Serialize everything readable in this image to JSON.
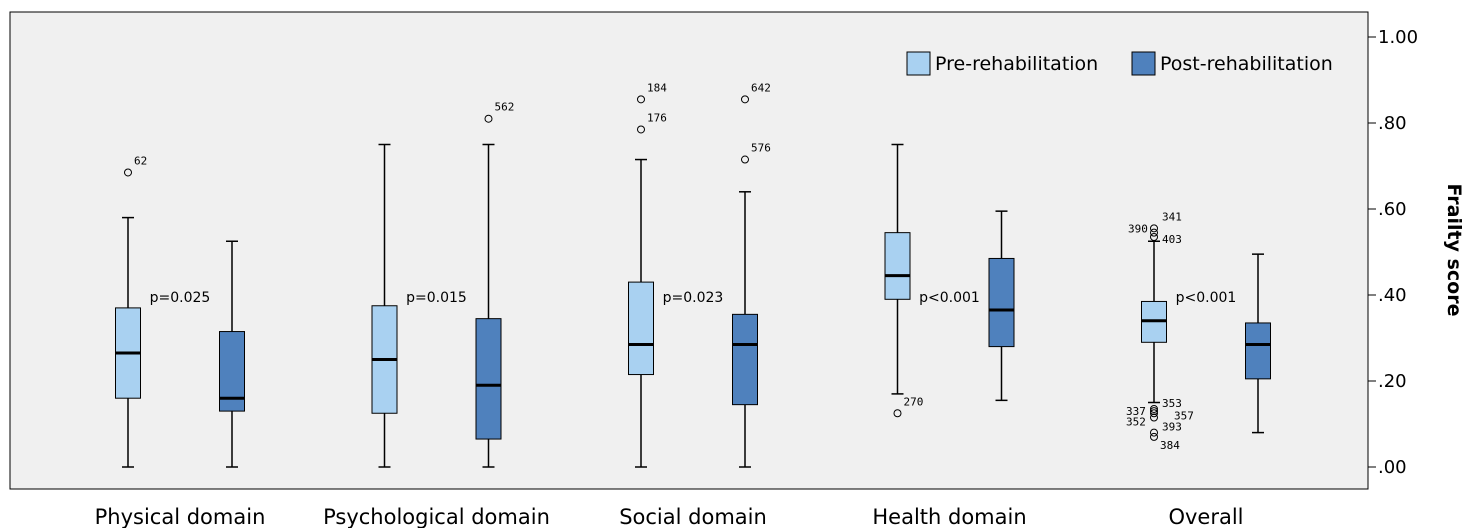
{
  "chart_data": {
    "type": "boxplot",
    "ylabel": "Frailty score",
    "ylim": [
      0,
      1.05
    ],
    "yticks": [
      {
        "value": 0.0,
        "label": ".00"
      },
      {
        "value": 0.2,
        "label": ".20"
      },
      {
        "value": 0.4,
        "label": ".40"
      },
      {
        "value": 0.6,
        "label": ".60"
      },
      {
        "value": 0.8,
        "label": ".80"
      },
      {
        "value": 1.0,
        "label": "1.00"
      }
    ],
    "y_axis_side": "right",
    "grid": false,
    "legend_position": "top-right",
    "categories": [
      "Physical domain",
      "Psychological domain",
      "Social domain",
      "Health domain",
      "Overall"
    ],
    "series": [
      {
        "name": "Pre-rehabilitation",
        "color": "#a9d1f1",
        "boxes": [
          {
            "min": 0.0,
            "q1": 0.16,
            "median": 0.265,
            "q3": 0.37,
            "max": 0.58,
            "outliers": [
              {
                "value": 0.685,
                "label": "62"
              }
            ]
          },
          {
            "min": 0.0,
            "q1": 0.125,
            "median": 0.25,
            "q3": 0.375,
            "max": 0.75,
            "outliers": []
          },
          {
            "min": 0.0,
            "q1": 0.215,
            "median": 0.285,
            "q3": 0.43,
            "max": 0.715,
            "outliers": [
              {
                "value": 0.855,
                "label": "184"
              },
              {
                "value": 0.785,
                "label": "176"
              }
            ]
          },
          {
            "min": 0.17,
            "q1": 0.39,
            "median": 0.445,
            "q3": 0.545,
            "max": 0.75,
            "outliers": [
              {
                "value": 0.125,
                "label": "270"
              }
            ]
          },
          {
            "min": 0.15,
            "q1": 0.29,
            "median": 0.34,
            "q3": 0.385,
            "max": 0.525,
            "outliers": [
              {
                "value": 0.555,
                "label": "341"
              },
              {
                "value": 0.545,
                "label": "390"
              },
              {
                "value": 0.535,
                "label": "403"
              },
              {
                "value": 0.135,
                "label": "353"
              },
              {
                "value": 0.13,
                "label": "337"
              },
              {
                "value": 0.125,
                "label": "357"
              },
              {
                "value": 0.115,
                "label": "352"
              },
              {
                "value": 0.08,
                "label": "393"
              },
              {
                "value": 0.07,
                "label": "384"
              }
            ]
          }
        ]
      },
      {
        "name": "Post-rehabilitation",
        "color": "#4f81bd",
        "boxes": [
          {
            "min": 0.0,
            "q1": 0.13,
            "median": 0.16,
            "q3": 0.315,
            "max": 0.525,
            "outliers": []
          },
          {
            "min": 0.0,
            "q1": 0.065,
            "median": 0.19,
            "q3": 0.345,
            "max": 0.75,
            "outliers": [
              {
                "value": 0.81,
                "label": "562"
              }
            ]
          },
          {
            "min": 0.0,
            "q1": 0.145,
            "median": 0.285,
            "q3": 0.355,
            "max": 0.64,
            "outliers": [
              {
                "value": 0.855,
                "label": "642"
              },
              {
                "value": 0.715,
                "label": "576"
              }
            ]
          },
          {
            "min": 0.155,
            "q1": 0.28,
            "median": 0.365,
            "q3": 0.485,
            "max": 0.595,
            "outliers": []
          },
          {
            "min": 0.08,
            "q1": 0.205,
            "median": 0.285,
            "q3": 0.335,
            "max": 0.495,
            "outliers": []
          }
        ]
      }
    ],
    "annotations": [
      {
        "category": 0,
        "text": "p=0.025",
        "value": 0.395
      },
      {
        "category": 1,
        "text": "p=0.015",
        "value": 0.395
      },
      {
        "category": 2,
        "text": "p=0.023",
        "value": 0.395
      },
      {
        "category": 3,
        "text": "p<0.001",
        "value": 0.395
      },
      {
        "category": 4,
        "text": "p<0.001",
        "value": 0.395
      }
    ]
  }
}
